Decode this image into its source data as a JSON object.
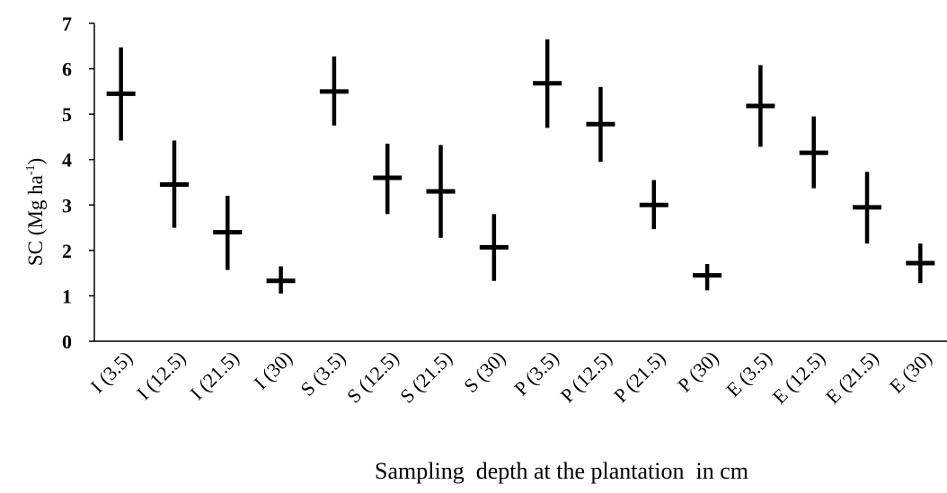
{
  "chart_data": {
    "type": "scatter",
    "categories": [
      "I (3.5)",
      "I (12.5)",
      "I (21.5)",
      "I (30)",
      "S (3.5)",
      "S (12.5)",
      "S (21.5)",
      "S (30)",
      "P (3.5)",
      "P (12.5)",
      "P (21.5)",
      "P (30)",
      "E (3.5)",
      "E (12.5)",
      "E (21.5)",
      "E (30)"
    ],
    "values": [
      5.45,
      3.45,
      2.4,
      1.33,
      5.5,
      3.6,
      3.3,
      2.07,
      5.68,
      4.78,
      3.0,
      1.45,
      5.18,
      4.15,
      2.95,
      1.72
    ],
    "error_low": [
      4.42,
      2.5,
      1.57,
      1.05,
      4.75,
      2.8,
      2.28,
      1.33,
      4.7,
      3.95,
      2.47,
      1.12,
      4.28,
      3.37,
      2.15,
      1.28
    ],
    "error_high": [
      6.47,
      4.42,
      3.2,
      1.65,
      6.27,
      4.35,
      4.32,
      2.8,
      6.65,
      5.6,
      3.55,
      1.7,
      6.08,
      4.95,
      3.73,
      2.15
    ],
    "ylabel_main": "SC (Mg ha",
    "ylabel_sup": "-1",
    "ylabel_end": ")",
    "xlabel": "Sampling  depth at the plantation  in cm",
    "yticks": [
      "0",
      "1",
      "2",
      "3",
      "4",
      "5",
      "6",
      "7"
    ],
    "ylim": [
      0,
      7
    ],
    "grid": false
  }
}
